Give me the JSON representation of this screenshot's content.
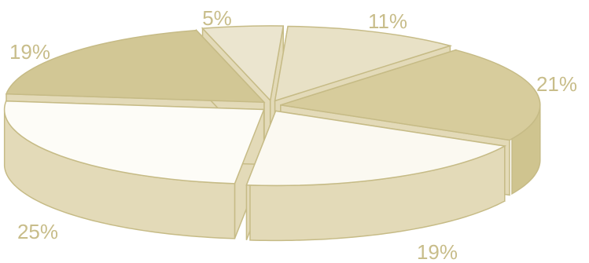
{
  "chart_data": {
    "type": "pie",
    "style": "3d-exploded",
    "slices": [
      {
        "label": "5%",
        "value": 5,
        "color": "#ebe5cf"
      },
      {
        "label": "11%",
        "value": 11,
        "color": "#e8e1c6"
      },
      {
        "label": "21%",
        "value": 21,
        "color": "#d7cc9c"
      },
      {
        "label": "19%",
        "value": 19,
        "color": "#fbf9f1"
      },
      {
        "label": "25%",
        "value": 25,
        "color": "#fdfcf7"
      },
      {
        "label": "19%",
        "value": 19,
        "color": "#d2c795"
      }
    ],
    "edge_color": "#c6bb86",
    "side_color": "#e3dab8",
    "label_color": "#c8bd8a"
  }
}
